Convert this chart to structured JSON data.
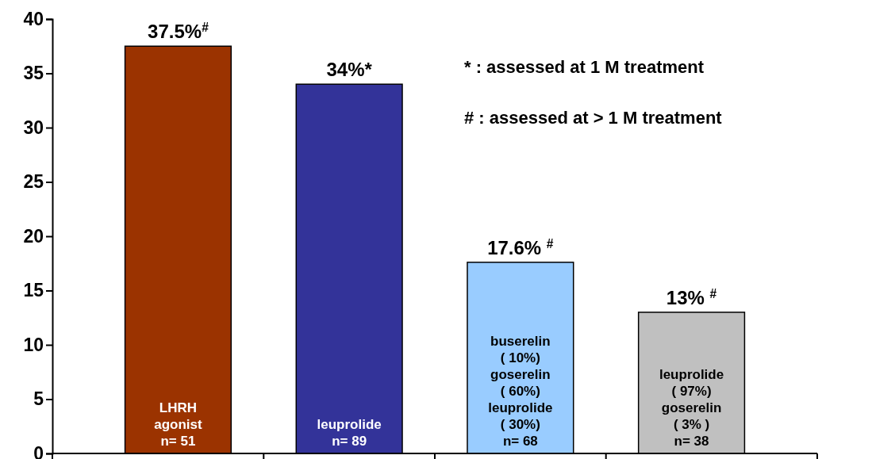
{
  "chart_data": {
    "type": "bar",
    "categories": [
      "LHRH\nagonist\nn= 51",
      "leuprolide\nn= 89",
      "buserelin\n( 10%)\ngoserelin\n( 60%)\nleuprolide\n( 30%)\nn= 68",
      "leuprolide\n( 97%)\ngoserelin\n( 3% )\nn= 38"
    ],
    "values": [
      37.5,
      34,
      17.6,
      13
    ],
    "colors": [
      "#9b3300",
      "#333399",
      "#99ccff",
      "#c0c0c0"
    ],
    "value_labels": [
      "37.5%$^{#}$",
      "34%*",
      "17.6% $^{#}$",
      "13% $^{#}$"
    ],
    "ylim": [
      0,
      40
    ],
    "yticks": [
      0,
      5,
      10,
      15,
      20,
      25,
      30,
      35,
      40
    ],
    "annotations": [
      "* : assessed at 1 M treatment",
      "# : assessed at > 1 M treatment"
    ]
  }
}
